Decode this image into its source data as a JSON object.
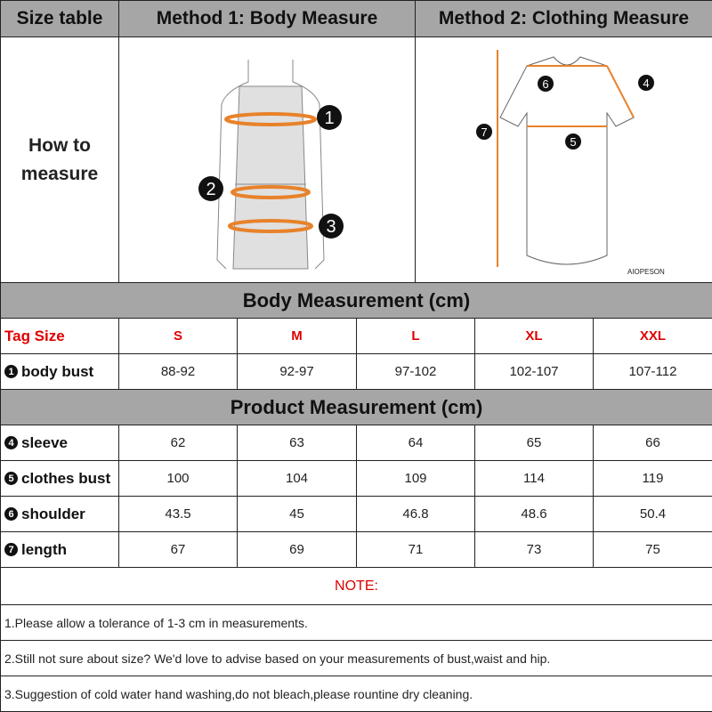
{
  "header": {
    "size_table": "Size table",
    "method1": "Method 1: Body  Measure",
    "method2": "Method 2: Clothing Measure"
  },
  "how_to": "How to\nmeasure",
  "figure": {
    "brand_label": "AIOPESON",
    "body_markers": [
      "1",
      "2",
      "3"
    ],
    "clothing_markers": [
      "4",
      "5",
      "6",
      "7"
    ]
  },
  "body_section": {
    "title": "Body Measurement (cm)",
    "tag_label": "Tag Size",
    "sizes": [
      "S",
      "M",
      "L",
      "XL",
      "XXL"
    ],
    "rows": [
      {
        "num": "1",
        "label": "body bust",
        "values": [
          "88-92",
          "92-97",
          "97-102",
          "102-107",
          "107-112"
        ]
      }
    ]
  },
  "product_section": {
    "title": "Product Measurement (cm)",
    "rows": [
      {
        "num": "4",
        "label": "sleeve",
        "values": [
          "62",
          "63",
          "64",
          "65",
          "66"
        ]
      },
      {
        "num": "5",
        "label": "clothes bust",
        "values": [
          "100",
          "104",
          "109",
          "114",
          "119"
        ]
      },
      {
        "num": "6",
        "label": "shoulder",
        "values": [
          "43.5",
          "45",
          "46.8",
          "48.6",
          "50.4"
        ]
      },
      {
        "num": "7",
        "label": "length",
        "values": [
          "67",
          "69",
          "71",
          "73",
          "75"
        ]
      }
    ]
  },
  "note": {
    "title": "NOTE:",
    "lines": [
      "1.Please allow a tolerance of 1-3 cm in measurements.",
      "2.Still not sure about size? We'd love to advise based on your measurements of bust,waist and hip.",
      "3.Suggestion of cold water hand washing,do not bleach,please rountine dry cleaning."
    ]
  },
  "colors": {
    "header_bg": "#a6a6a6",
    "tag_red": "#e00000",
    "measure_orange": "#e8822a"
  }
}
